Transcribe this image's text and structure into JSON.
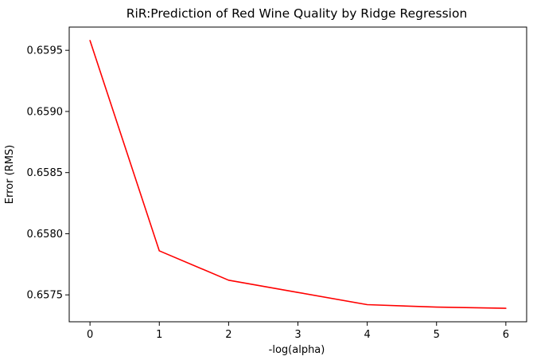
{
  "chart_data": {
    "type": "line",
    "title": "RiR:Prediction of Red Wine Quality by Ridge Regression",
    "xlabel": "-log(alpha)",
    "ylabel": "Error (RMS)",
    "x": [
      0,
      1,
      2,
      3,
      4,
      5,
      6
    ],
    "series": [
      {
        "color": "#ff0000",
        "values": [
          0.65958,
          0.65786,
          0.65762,
          0.65752,
          0.65742,
          0.6574,
          0.65739
        ]
      }
    ],
    "xlim": [
      -0.3,
      6.3
    ],
    "ylim": [
      0.65728,
      0.65969
    ],
    "xticks": [
      0,
      1,
      2,
      3,
      4,
      5,
      6
    ],
    "xtick_labels": [
      "0",
      "1",
      "2",
      "3",
      "4",
      "5",
      "6"
    ],
    "yticks": [
      0.6575,
      0.658,
      0.6585,
      0.659,
      0.6595
    ],
    "ytick_labels": [
      "0.6575",
      "0.6580",
      "0.6585",
      "0.6590",
      "0.6595"
    ],
    "grid": false,
    "legend": "none"
  }
}
